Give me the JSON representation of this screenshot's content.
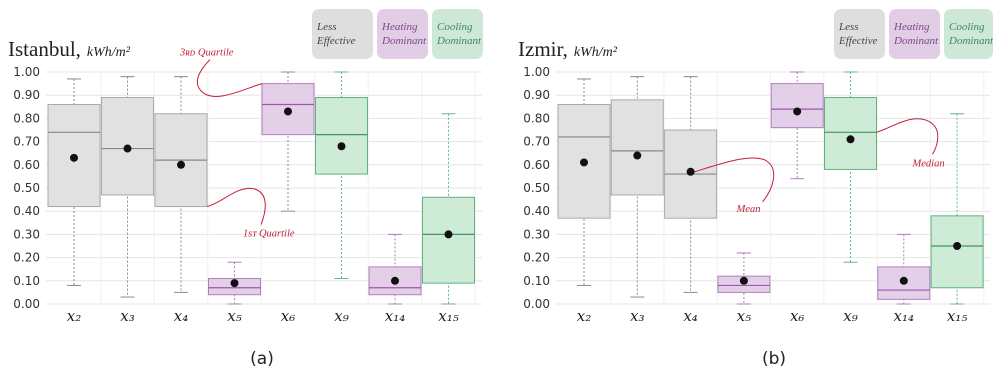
{
  "chart_data": [
    {
      "type": "box",
      "panel_label": "(a)",
      "title": "Istanbul,",
      "unit": "kWh/m²",
      "ylim": [
        0,
        1
      ],
      "yticks": [
        "0.00",
        "0.10",
        "0.20",
        "0.30",
        "0.40",
        "0.50",
        "0.60",
        "0.70",
        "0.80",
        "0.90",
        "1.00"
      ],
      "grid": true,
      "legend": [
        {
          "label": [
            "Less",
            "Effective"
          ],
          "color": "#dedede",
          "text_color": "#444444"
        },
        {
          "label": [
            "Heating",
            "Dominant"
          ],
          "color": "#e2cde6",
          "text_color": "#7a4a85"
        },
        {
          "label": [
            "Cooling",
            "Dominant"
          ],
          "color": "#cde8d6",
          "text_color": "#3c8a5a"
        }
      ],
      "categories": [
        {
          "label": "x₂",
          "group": "less",
          "min": 0.08,
          "q1": 0.42,
          "median": 0.74,
          "q3": 0.86,
          "max": 0.97,
          "mean": 0.63
        },
        {
          "label": "x₃",
          "group": "less",
          "min": 0.03,
          "q1": 0.47,
          "median": 0.67,
          "q3": 0.89,
          "max": 0.98,
          "mean": 0.67
        },
        {
          "label": "x₄",
          "group": "less",
          "min": 0.05,
          "q1": 0.42,
          "median": 0.62,
          "q3": 0.82,
          "max": 0.98,
          "mean": 0.6
        },
        {
          "label": "x₅",
          "group": "heating",
          "min": 0.0,
          "q1": 0.04,
          "median": 0.07,
          "q3": 0.11,
          "max": 0.18,
          "mean": 0.09
        },
        {
          "label": "x₆",
          "group": "heating",
          "min": 0.4,
          "q1": 0.73,
          "median": 0.86,
          "q3": 0.95,
          "max": 1.0,
          "mean": 0.83
        },
        {
          "label": "x₉",
          "group": "cooling",
          "min": 0.11,
          "q1": 0.56,
          "median": 0.73,
          "q3": 0.89,
          "max": 1.0,
          "mean": 0.68
        },
        {
          "label": "x₁₄",
          "group": "heating",
          "min": 0.0,
          "q1": 0.04,
          "median": 0.07,
          "q3": 0.16,
          "max": 0.3,
          "mean": 0.1
        },
        {
          "label": "x₁₅",
          "group": "cooling",
          "min": 0.0,
          "q1": 0.09,
          "median": 0.3,
          "q3": 0.46,
          "max": 0.82,
          "mean": 0.3
        }
      ],
      "annotations": [
        {
          "text": "3ʀᴅ Quartile"
        },
        {
          "text": "1sᴛ Quartile"
        }
      ]
    },
    {
      "type": "box",
      "panel_label": "(b)",
      "title": "Izmir,",
      "unit": "kWh/m²",
      "ylim": [
        0,
        1
      ],
      "yticks": [
        "0.00",
        "0.10",
        "0.20",
        "0.30",
        "0.40",
        "0.50",
        "0.60",
        "0.70",
        "0.80",
        "0.90",
        "1.00"
      ],
      "grid": true,
      "legend": [
        {
          "label": [
            "Less",
            "Effective"
          ],
          "color": "#dedede",
          "text_color": "#444444"
        },
        {
          "label": [
            "Heating",
            "Dominant"
          ],
          "color": "#e2cde6",
          "text_color": "#7a4a85"
        },
        {
          "label": [
            "Cooling",
            "Dominant"
          ],
          "color": "#cde8d6",
          "text_color": "#3c8a5a"
        }
      ],
      "categories": [
        {
          "label": "x₂",
          "group": "less",
          "min": 0.08,
          "q1": 0.37,
          "median": 0.72,
          "q3": 0.86,
          "max": 0.97,
          "mean": 0.61
        },
        {
          "label": "x₃",
          "group": "less",
          "min": 0.03,
          "q1": 0.47,
          "median": 0.66,
          "q3": 0.88,
          "max": 0.98,
          "mean": 0.64
        },
        {
          "label": "x₄",
          "group": "less",
          "min": 0.05,
          "q1": 0.37,
          "median": 0.56,
          "q3": 0.75,
          "max": 0.98,
          "mean": 0.57
        },
        {
          "label": "x₅",
          "group": "heating",
          "min": 0.0,
          "q1": 0.05,
          "median": 0.08,
          "q3": 0.12,
          "max": 0.22,
          "mean": 0.1
        },
        {
          "label": "x₆",
          "group": "heating",
          "min": 0.54,
          "q1": 0.76,
          "median": 0.84,
          "q3": 0.95,
          "max": 1.0,
          "mean": 0.83
        },
        {
          "label": "x₉",
          "group": "cooling",
          "min": 0.18,
          "q1": 0.58,
          "median": 0.74,
          "q3": 0.89,
          "max": 1.0,
          "mean": 0.71
        },
        {
          "label": "x₁₄",
          "group": "heating",
          "min": 0.0,
          "q1": 0.02,
          "median": 0.06,
          "q3": 0.16,
          "max": 0.3,
          "mean": 0.1
        },
        {
          "label": "x₁₅",
          "group": "cooling",
          "min": 0.0,
          "q1": 0.07,
          "median": 0.25,
          "q3": 0.38,
          "max": 0.82,
          "mean": 0.25
        }
      ],
      "annotations": [
        {
          "text": "Mean"
        },
        {
          "text": "Median"
        }
      ]
    }
  ],
  "colors": {
    "less": {
      "fill": "#e1e1e1",
      "stroke": "#a9a9a9",
      "median": "#888888",
      "whisker": "#8a8a8a"
    },
    "heating": {
      "fill": "#e4cfe8",
      "stroke": "#b27ec0",
      "median": "#9a5aa8",
      "whisker": "#b07cbd"
    },
    "cooling": {
      "fill": "#cdebd7",
      "stroke": "#5fb37d",
      "median": "#3e9a5e",
      "whisker": "#63b882"
    },
    "grid": "#e4e4e4",
    "mean_dot": "#111111",
    "annotation": "#c0223a"
  }
}
